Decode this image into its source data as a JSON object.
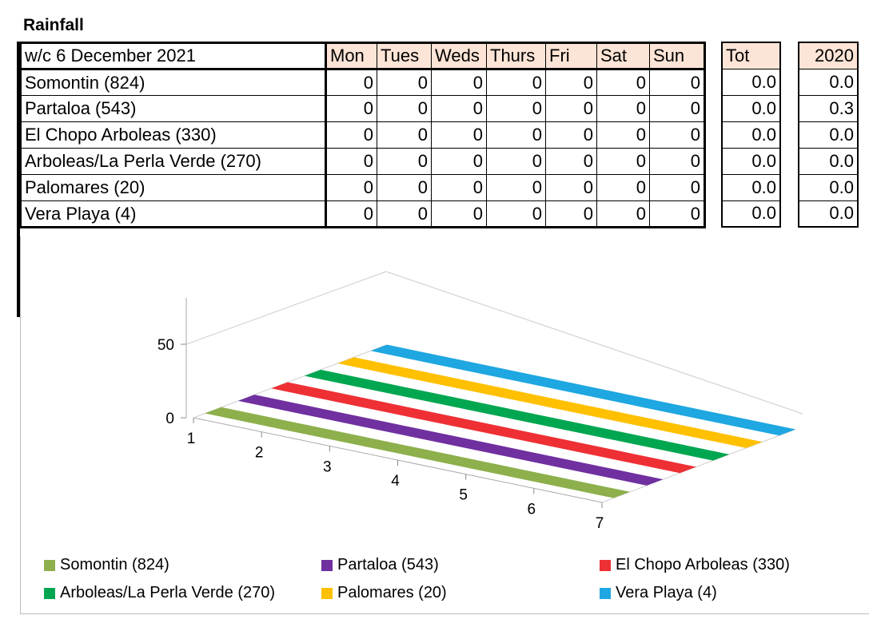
{
  "title": "Rainfall",
  "table": {
    "week_label": "w/c 6 December 2021",
    "days": [
      "Mon",
      "Tues",
      "Weds",
      "Thurs",
      "Fri",
      "Sat",
      "Sun"
    ],
    "tot_label": "Tot",
    "year_label": "2020",
    "rows": [
      {
        "name": "Somontin (824)",
        "values": [
          "0",
          "0",
          "0",
          "0",
          "0",
          "0",
          "0"
        ],
        "tot": "0.0",
        "prev": "0.0"
      },
      {
        "name": "Partaloa (543)",
        "values": [
          "0",
          "0",
          "0",
          "0",
          "0",
          "0",
          "0"
        ],
        "tot": "0.0",
        "prev": "0.3"
      },
      {
        "name": "El Chopo Arboleas (330)",
        "values": [
          "0",
          "0",
          "0",
          "0",
          "0",
          "0",
          "0"
        ],
        "tot": "0.0",
        "prev": "0.0"
      },
      {
        "name": "Arboleas/La Perla Verde (270)",
        "values": [
          "0",
          "0",
          "0",
          "0",
          "0",
          "0",
          "0"
        ],
        "tot": "0.0",
        "prev": "0.0"
      },
      {
        "name": "Palomares (20)",
        "values": [
          "0",
          "0",
          "0",
          "0",
          "0",
          "0",
          "0"
        ],
        "tot": "0.0",
        "prev": "0.0"
      },
      {
        "name": "Vera Playa (4)",
        "values": [
          "0",
          "0",
          "0",
          "0",
          "0",
          "0",
          "0"
        ],
        "tot": "0.0",
        "prev": "0.0"
      }
    ]
  },
  "chart_data": {
    "type": "line",
    "x": [
      1,
      2,
      3,
      4,
      5,
      6,
      7
    ],
    "y_ticks": [
      "0",
      "50"
    ],
    "series": [
      {
        "name": "Somontin (824)",
        "values": [
          0,
          0,
          0,
          0,
          0,
          0,
          0
        ],
        "color": "#8db04c"
      },
      {
        "name": "Partaloa (543)",
        "values": [
          0,
          0,
          0,
          0,
          0,
          0,
          0
        ],
        "color": "#7030a0"
      },
      {
        "name": "El Chopo Arboleas (330)",
        "values": [
          0,
          0,
          0,
          0,
          0,
          0,
          0
        ],
        "color": "#ee3035"
      },
      {
        "name": "Arboleas/La Perla Verde (270)",
        "values": [
          0,
          0,
          0,
          0,
          0,
          0,
          0
        ],
        "color": "#00a650"
      },
      {
        "name": "Palomares (20)",
        "values": [
          0,
          0,
          0,
          0,
          0,
          0,
          0
        ],
        "color": "#ffc000"
      },
      {
        "name": "Vera Playa (4)",
        "values": [
          0,
          0,
          0,
          0,
          0,
          0,
          0
        ],
        "color": "#1ea7e1"
      }
    ]
  }
}
